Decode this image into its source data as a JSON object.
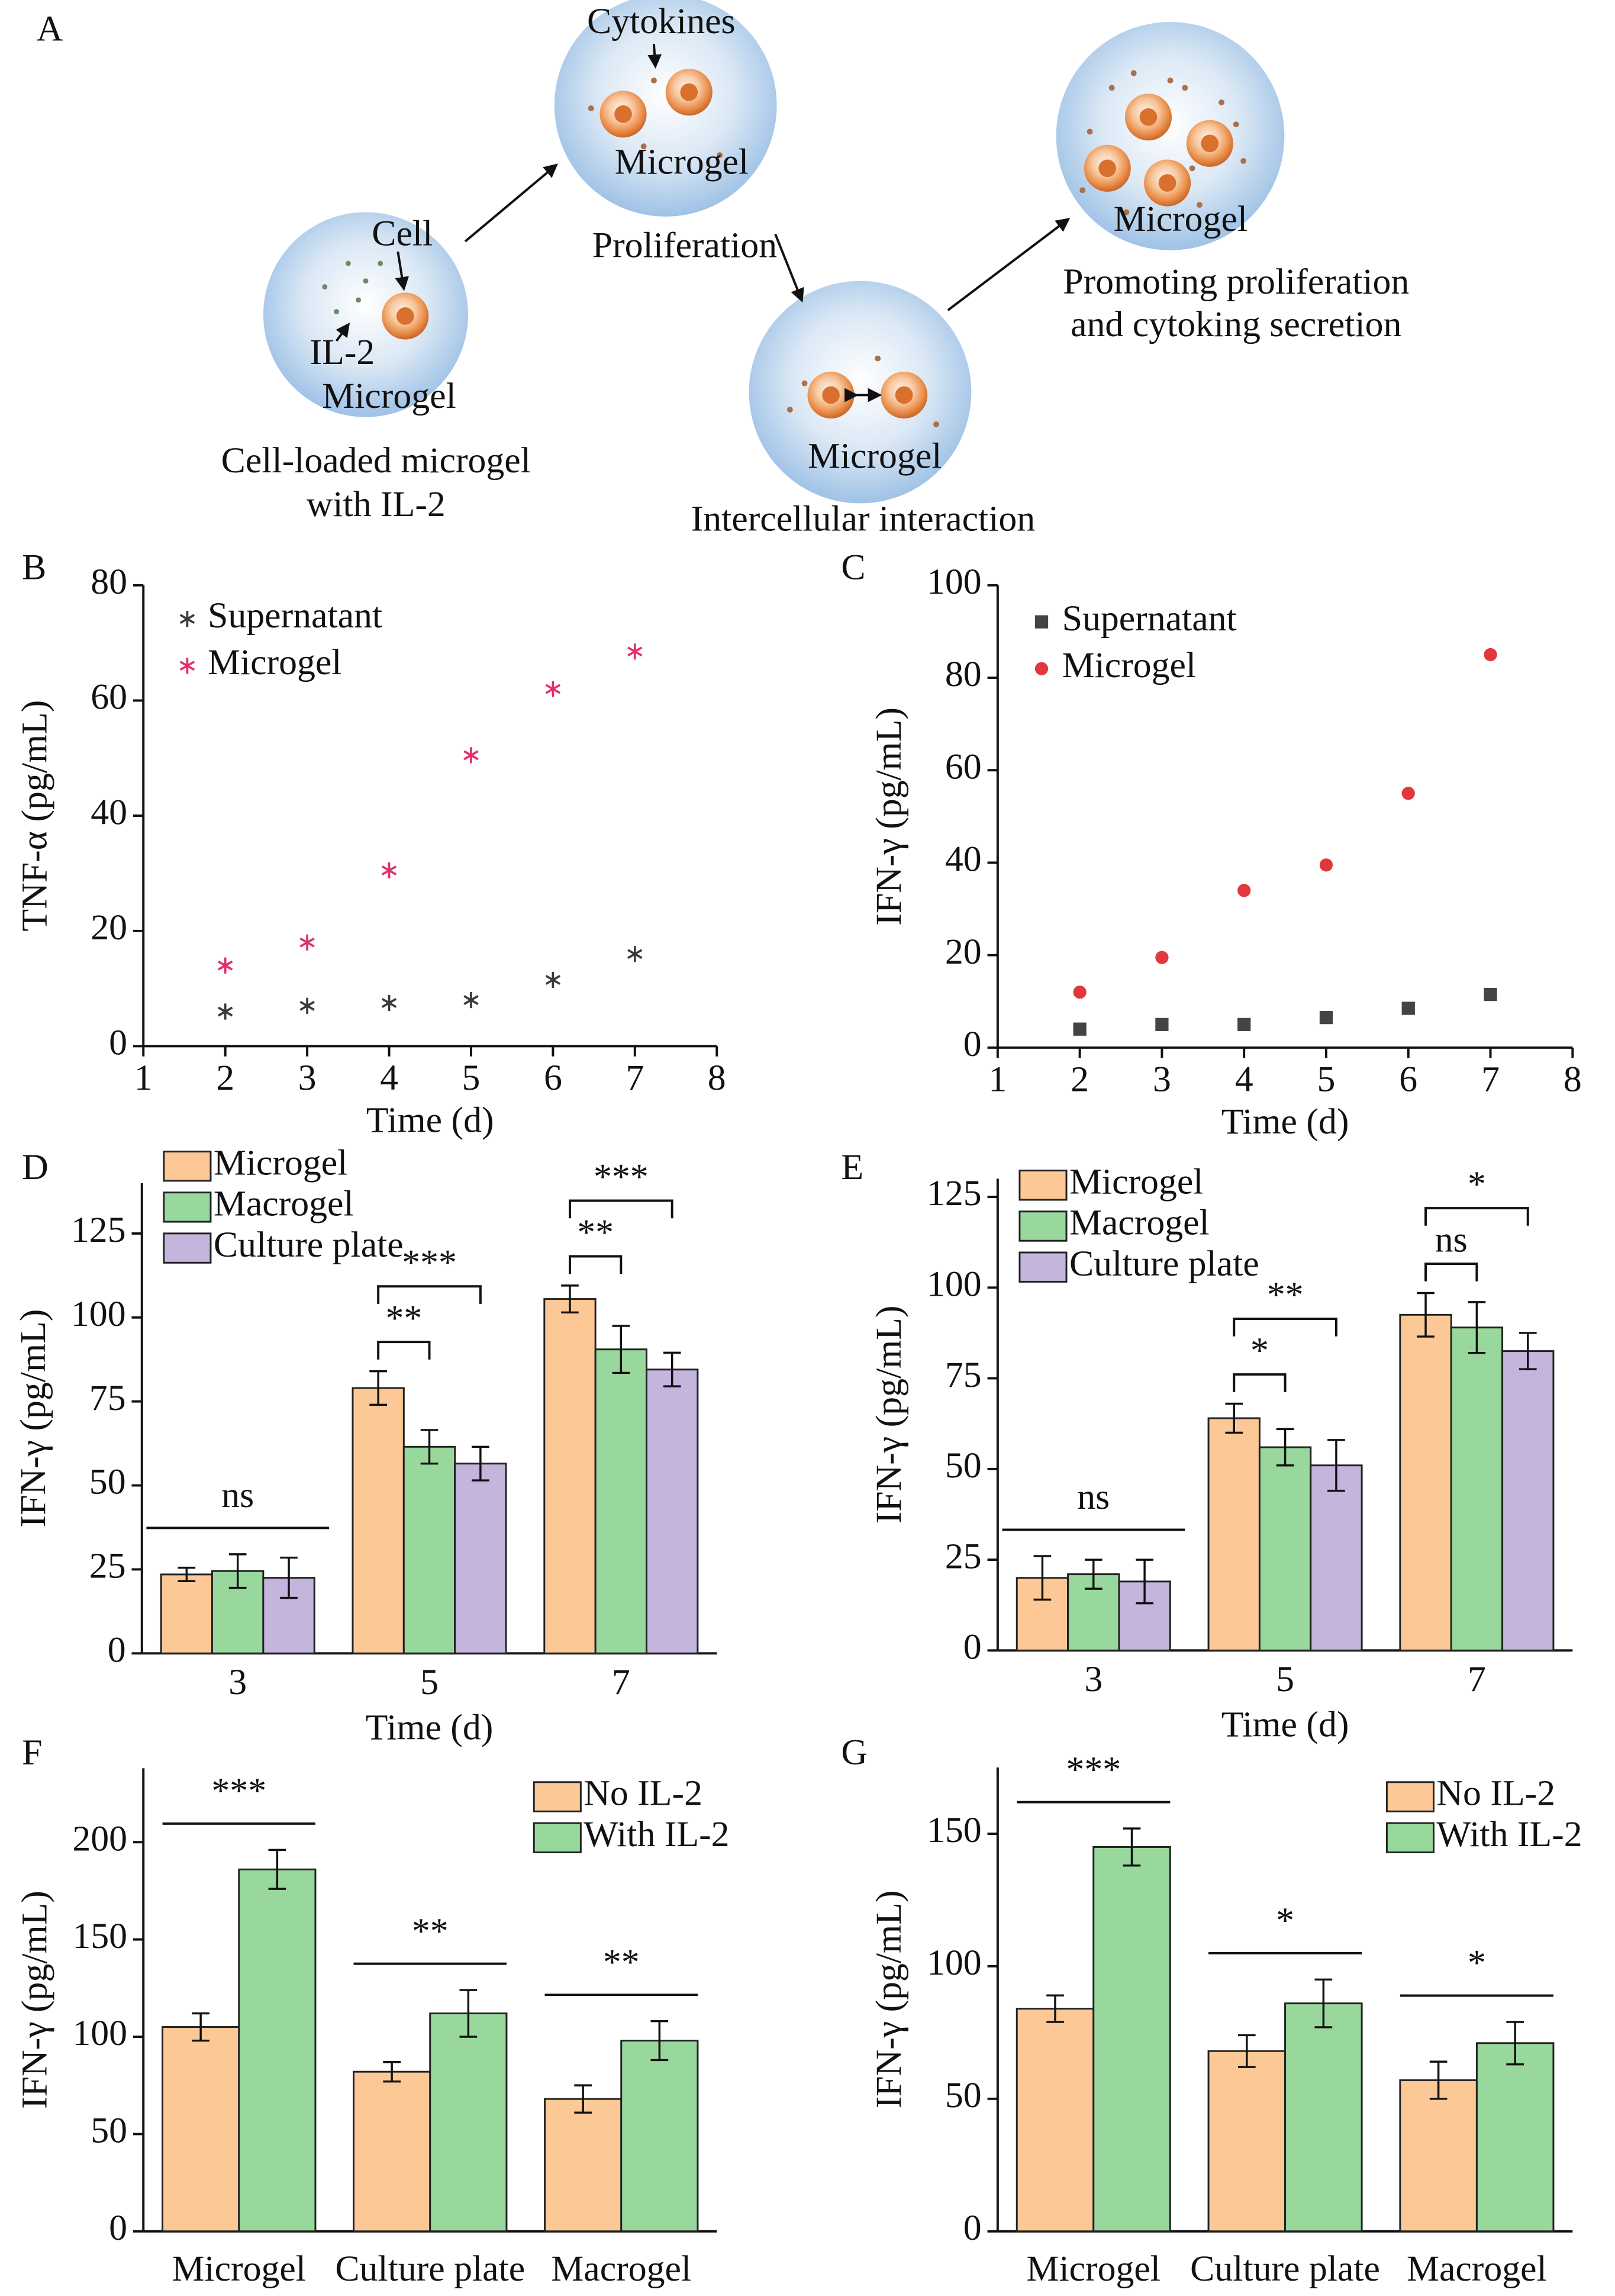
{
  "diagram": {
    "panel": "A",
    "labels": {
      "cytokines": "Cytokines",
      "microgel_2": "Microgel",
      "proliferation": "Proliferation",
      "cell": "Cell",
      "il2": "IL-2",
      "microgel_1": "Microgel",
      "caption_1": [
        "Cell-loaded microgel",
        "with IL-2"
      ],
      "microgel_3": "Microgel",
      "caption_3": "Intercellular interaction",
      "microgel_4": "Microgel",
      "caption_4": [
        "Promoting proliferation",
        "and cytoking secretion"
      ]
    }
  },
  "chart_data": [
    {
      "type": "scatter",
      "panel": "B",
      "xlabel": "Time (d)",
      "ylabel": "TNF-α (pg/mL)",
      "x": [
        2,
        3,
        4,
        5,
        6,
        7
      ],
      "xlim": [
        1,
        8
      ],
      "xticks": [
        1,
        2,
        3,
        4,
        5,
        6,
        7,
        8
      ],
      "ylim": [
        0,
        80
      ],
      "yticks": [
        0,
        20,
        40,
        60,
        80
      ],
      "legend": "upper left",
      "series": [
        {
          "name": "Supernatant",
          "color": "#3a3a3a",
          "marker": "asterisk",
          "values": [
            6,
            7,
            7.5,
            8,
            11.5,
            16
          ]
        },
        {
          "name": "Microgel",
          "color": "#e0306a",
          "marker": "asterisk",
          "values": [
            14,
            18,
            30.5,
            50.5,
            62,
            68.5
          ]
        }
      ]
    },
    {
      "type": "scatter",
      "panel": "C",
      "xlabel": "Time (d)",
      "ylabel": "IFN-γ (pg/mL)",
      "x": [
        2,
        3,
        4,
        5,
        6,
        7
      ],
      "xlim": [
        1,
        8
      ],
      "xticks": [
        1,
        2,
        3,
        4,
        5,
        6,
        7,
        8
      ],
      "ylim": [
        0,
        100
      ],
      "yticks": [
        0,
        20,
        40,
        60,
        80,
        100
      ],
      "legend": "upper left",
      "series": [
        {
          "name": "Supernatant",
          "color": "#444444",
          "marker": "square",
          "values": [
            4,
            5,
            5,
            6.5,
            8.5,
            11.5
          ]
        },
        {
          "name": "Microgel",
          "color": "#e0383c",
          "marker": "circle",
          "values": [
            12,
            19.5,
            34,
            39.5,
            55,
            85
          ]
        }
      ]
    },
    {
      "type": "bar",
      "panel": "D",
      "xlabel": "Time (d)",
      "ylabel": "IFN-γ (pg/mL)",
      "categories": [
        "3",
        "5",
        "7"
      ],
      "ylim": [
        0,
        140
      ],
      "yticks": [
        0,
        25,
        50,
        75,
        100,
        125
      ],
      "legend": "upper left",
      "series": [
        {
          "name": "Microgel",
          "color": "#fcc896",
          "values": [
            23.5,
            79,
            105.5
          ],
          "errors": [
            2,
            5,
            4
          ]
        },
        {
          "name": "Macrogel",
          "color": "#98d89c",
          "values": [
            24.5,
            61.5,
            90.5
          ],
          "errors": [
            5,
            5,
            7
          ]
        },
        {
          "name": "Culture plate",
          "color": "#c4b5dc",
          "values": [
            22.5,
            56.5,
            84.5
          ],
          "errors": [
            6,
            5,
            5
          ]
        }
      ],
      "annotations": [
        "ns",
        "**",
        "***",
        "**",
        "***"
      ]
    },
    {
      "type": "bar",
      "panel": "E",
      "xlabel": "Time (d)",
      "ylabel": "IFN-γ (pg/mL)",
      "categories": [
        "3",
        "5",
        "7"
      ],
      "ylim": [
        0,
        130
      ],
      "yticks": [
        0,
        25,
        50,
        75,
        100,
        125
      ],
      "legend": "upper left",
      "series": [
        {
          "name": "Microgel",
          "color": "#fcc896",
          "values": [
            20,
            64,
            92.5
          ],
          "errors": [
            6,
            4,
            6
          ]
        },
        {
          "name": "Macrogel",
          "color": "#98d89c",
          "values": [
            21,
            56,
            89
          ],
          "errors": [
            4,
            5,
            7
          ]
        },
        {
          "name": "Culture plate",
          "color": "#c4b5dc",
          "values": [
            19,
            51,
            82.5
          ],
          "errors": [
            6,
            7,
            5
          ]
        }
      ],
      "annotations": [
        "ns",
        "*",
        "**",
        "ns",
        "*"
      ]
    },
    {
      "type": "bar",
      "panel": "F",
      "ylabel": "IFN-γ (pg/mL)",
      "categories": [
        "Microgel",
        "Culture plate",
        "Macrogel"
      ],
      "ylim": [
        0,
        238
      ],
      "yticks": [
        0,
        50,
        100,
        150,
        200
      ],
      "legend": "upper right",
      "series": [
        {
          "name": "No IL-2",
          "color": "#fcc896",
          "values": [
            105,
            82,
            68
          ],
          "errors": [
            7,
            5,
            7
          ]
        },
        {
          "name": "With IL-2",
          "color": "#98d89c",
          "values": [
            186,
            112,
            98
          ],
          "errors": [
            10,
            12,
            10
          ]
        }
      ],
      "annotations": [
        "***",
        "**",
        "**"
      ]
    },
    {
      "type": "bar",
      "panel": "G",
      "ylabel": "IFN-γ (pg/mL)",
      "categories": [
        "Microgel",
        "Culture plate",
        "Macrogel"
      ],
      "ylim": [
        0,
        175
      ],
      "yticks": [
        0,
        50,
        100,
        150
      ],
      "legend": "upper right",
      "series": [
        {
          "name": "No IL-2",
          "color": "#fcc896",
          "values": [
            84,
            68,
            57
          ],
          "errors": [
            5,
            6,
            7
          ]
        },
        {
          "name": "With IL-2",
          "color": "#98d89c",
          "values": [
            145,
            86,
            71
          ],
          "errors": [
            7,
            9,
            8
          ]
        }
      ],
      "annotations": [
        "***",
        "*",
        "*"
      ]
    }
  ]
}
